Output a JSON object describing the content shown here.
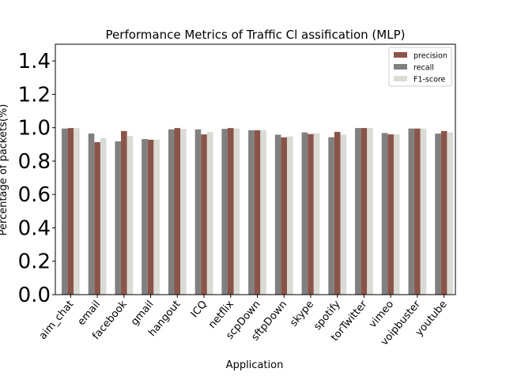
{
  "chart_data": {
    "type": "bar",
    "title": "Performance Metrics of Traffic Cl assification (MLP)",
    "xlabel": "Application",
    "ylabel": "Percentage of packets(%)",
    "ylim": [
      0.0,
      1.5
    ],
    "yticks": [
      "0.0",
      "0.2",
      "0.4",
      "0.6",
      "0.8",
      "1.0",
      "1.2",
      "1.4"
    ],
    "grid": false,
    "legend_position": "top-right",
    "categories": [
      "aim_chat",
      "email",
      "facebook",
      "gmail",
      "hangout",
      "ICQ",
      "netflix",
      "scpDown",
      "sftpDown",
      "skype",
      "spotify",
      "torTwitter",
      "vimeo",
      "voipbuster",
      "youtube"
    ],
    "series": [
      {
        "name": "recall",
        "color": "#808080",
        "values": [
          0.995,
          0.965,
          0.918,
          0.932,
          0.99,
          0.99,
          0.993,
          0.985,
          0.958,
          0.972,
          0.943,
          0.998,
          0.968,
          0.995,
          0.965
        ]
      },
      {
        "name": "precision",
        "color": "#8b5449",
        "values": [
          0.998,
          0.913,
          0.98,
          0.928,
          0.998,
          0.96,
          0.998,
          0.985,
          0.942,
          0.962,
          0.975,
          0.998,
          0.96,
          0.995,
          0.98
        ]
      },
      {
        "name": "F1-score",
        "color": "#d8dcd4",
        "values": [
          0.998,
          0.937,
          0.95,
          0.928,
          0.993,
          0.975,
          0.995,
          0.985,
          0.948,
          0.967,
          0.958,
          0.998,
          0.96,
          0.995,
          0.972
        ]
      }
    ],
    "legend_order": [
      "precision",
      "recall",
      "F1-score"
    ]
  }
}
